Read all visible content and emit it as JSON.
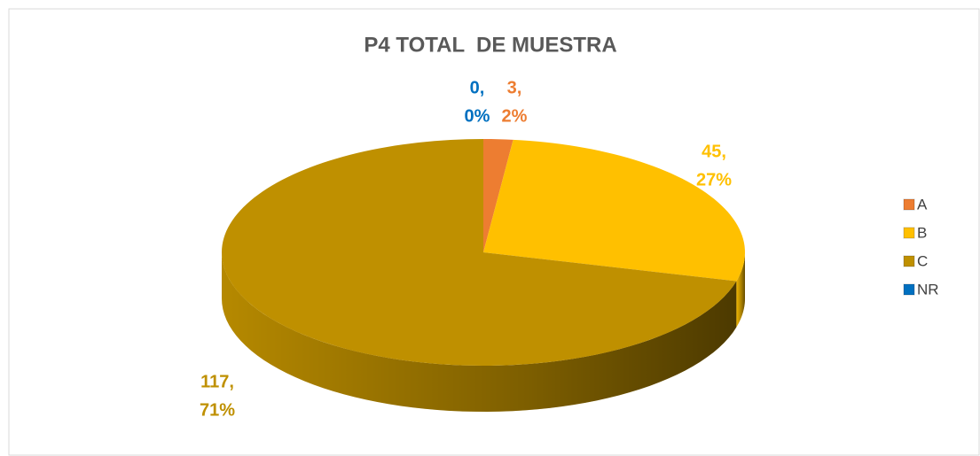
{
  "chart_data": {
    "type": "pie",
    "title": "P4 TOTAL  DE MUESTRA",
    "categories": [
      "NR",
      "A",
      "B",
      "C"
    ],
    "values": [
      0,
      3,
      45,
      117
    ],
    "value_labels": [
      [
        "0,",
        "0%"
      ],
      [
        "3,",
        "2%"
      ],
      [
        "45,",
        "27%"
      ],
      [
        "117,",
        "71%"
      ]
    ],
    "colors": [
      "#0070c0",
      "#ed7d31",
      "#ffc000",
      "#bf9000"
    ],
    "legend_order": [
      1,
      2,
      3,
      0
    ],
    "legend": "right"
  }
}
